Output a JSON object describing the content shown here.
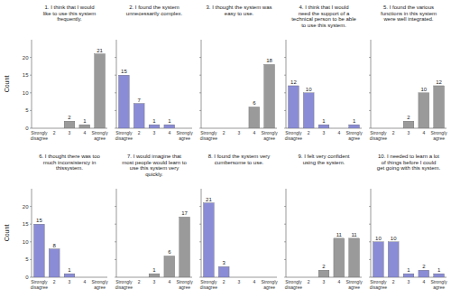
{
  "chart_data": [
    {
      "type": "bar",
      "title": "1. I think that I would like to use this system frequently.",
      "y_label": "Count",
      "categories": [
        "Strongly disagree",
        "2",
        "3",
        "4",
        "Strongly agree"
      ],
      "values": [
        null,
        null,
        2,
        1,
        21
      ],
      "color": "#9a9a9a",
      "ylim": [
        0,
        25
      ],
      "yticks": [
        0,
        5,
        10,
        15,
        20
      ],
      "grid": false,
      "data_labels": true,
      "tick_labels": true
    },
    {
      "type": "bar",
      "title": "2. I found the system unnecessarily complex.",
      "categories": [
        "Strongly disagree",
        "2",
        "3",
        "4",
        "Strongly agree"
      ],
      "values": [
        15,
        7,
        1,
        1,
        null
      ],
      "color": "#8a8cd6",
      "ylim": [
        0,
        25
      ],
      "yticks": [
        0,
        5,
        10,
        15,
        20
      ],
      "grid": false,
      "data_labels": true,
      "tick_labels": "x"
    },
    {
      "type": "bar",
      "title": "3. I thought the system was easy to use.",
      "categories": [
        "Strongly disagree",
        "2",
        "3",
        "4",
        "Strongly agree"
      ],
      "values": [
        null,
        null,
        null,
        6,
        18
      ],
      "color": "#9a9a9a",
      "ylim": [
        0,
        25
      ],
      "yticks": [
        0,
        5,
        10,
        15,
        20
      ],
      "grid": false,
      "data_labels": true,
      "tick_labels": "x"
    },
    {
      "type": "bar",
      "title": "4. I think that I would need the support of a technical person to be able to use this system.",
      "categories": [
        "Strongly disagree",
        "2",
        "3",
        "4",
        "Strongly agree"
      ],
      "values": [
        12,
        10,
        1,
        null,
        1
      ],
      "color": "#8a8cd6",
      "ylim": [
        0,
        25
      ],
      "yticks": [
        0,
        5,
        10,
        15,
        20
      ],
      "grid": false,
      "data_labels": true,
      "tick_labels": "x"
    },
    {
      "type": "bar",
      "title": "5. I found the various functions in this system were well integrated.",
      "categories": [
        "Strongly disagree",
        "2",
        "3",
        "4",
        "Strongly agree"
      ],
      "values": [
        null,
        null,
        2,
        10,
        12
      ],
      "color": "#9a9a9a",
      "ylim": [
        0,
        25
      ],
      "yticks": [
        0,
        5,
        10,
        15,
        20
      ],
      "grid": false,
      "data_labels": true,
      "tick_labels": "x"
    },
    {
      "type": "bar",
      "title": "6. I thought there was too much inconsistency in thissystem.",
      "y_label": "Count",
      "categories": [
        "Strongly disagree",
        "2",
        "3",
        "4",
        "Strongly agree"
      ],
      "values": [
        15,
        8,
        1,
        null,
        null
      ],
      "color": "#8a8cd6",
      "ylim": [
        0,
        25
      ],
      "yticks": [
        0,
        5,
        10,
        15,
        20
      ],
      "grid": false,
      "data_labels": true,
      "tick_labels": true
    },
    {
      "type": "bar",
      "title": "7. I would imagine that most people would learn to use this system very quickly.",
      "categories": [
        "Strongly disagree",
        "2",
        "3",
        "4",
        "Strongly agree"
      ],
      "values": [
        null,
        null,
        1,
        6,
        17
      ],
      "color": "#9a9a9a",
      "ylim": [
        0,
        25
      ],
      "yticks": [
        0,
        5,
        10,
        15,
        20
      ],
      "grid": false,
      "data_labels": true,
      "tick_labels": "x"
    },
    {
      "type": "bar",
      "title": "8. I found the system very cumbersome to use.",
      "categories": [
        "Strongly disagree",
        "2",
        "3",
        "4",
        "Strongly agree"
      ],
      "values": [
        21,
        3,
        null,
        null,
        null
      ],
      "color": "#8a8cd6",
      "ylim": [
        0,
        25
      ],
      "yticks": [
        0,
        5,
        10,
        15,
        20
      ],
      "grid": false,
      "data_labels": true,
      "tick_labels": "x"
    },
    {
      "type": "bar",
      "title": "9. I felt very confident using the system.",
      "categories": [
        "Strongly disagree",
        "2",
        "3",
        "4",
        "Strongly agree"
      ],
      "values": [
        null,
        null,
        2,
        11,
        11
      ],
      "color": "#9a9a9a",
      "ylim": [
        0,
        25
      ],
      "yticks": [
        0,
        5,
        10,
        15,
        20
      ],
      "grid": false,
      "data_labels": true,
      "tick_labels": "x"
    },
    {
      "type": "bar",
      "title": "10. I needed to learn a lot of things before I could get going with this system.",
      "categories": [
        "Strongly disagree",
        "2",
        "3",
        "4",
        "Strongly agree"
      ],
      "values": [
        10,
        10,
        1,
        2,
        1
      ],
      "color": "#8a8cd6",
      "ylim": [
        0,
        25
      ],
      "yticks": [
        0,
        5,
        10,
        15,
        20
      ],
      "grid": false,
      "data_labels": true,
      "tick_labels": "x"
    }
  ]
}
